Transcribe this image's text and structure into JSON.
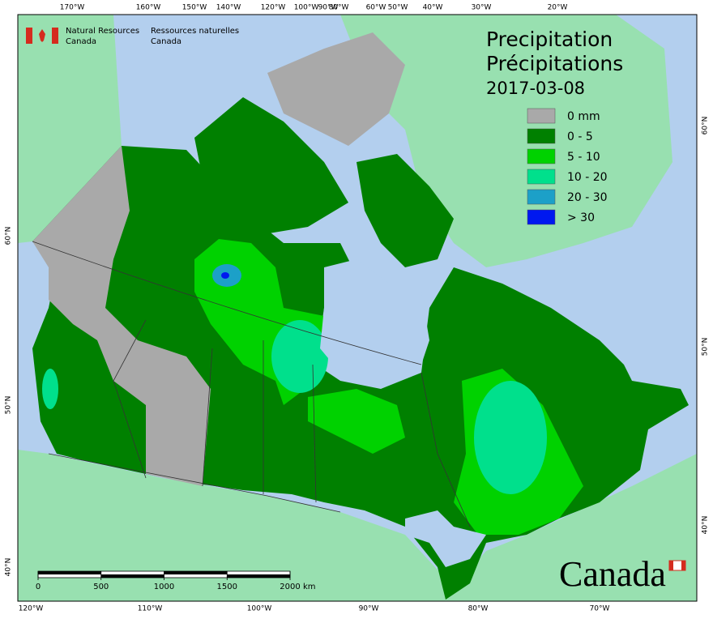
{
  "agency": {
    "en": [
      "Natural Resources",
      "Canada"
    ],
    "fr": [
      "Ressources naturelles",
      "Canada"
    ]
  },
  "title": {
    "en": "Precipitation",
    "fr": "Précipitations",
    "date": "2017-03-08"
  },
  "legend": [
    {
      "label": "0 mm",
      "color": "#a9a9a9"
    },
    {
      "label": "0 - 5",
      "color": "#008000"
    },
    {
      "label": "5 - 10",
      "color": "#00d200"
    },
    {
      "label": "10 - 20",
      "color": "#00e08c"
    },
    {
      "label": "20 - 30",
      "color": "#1ca0c8"
    },
    {
      "label": "> 30",
      "color": "#0018f0"
    }
  ],
  "graticule": {
    "top": [
      "170°W",
      "160°W",
      "150°W",
      "140°W",
      "120°W",
      "100°W",
      "90°W",
      "80°W",
      "60°W",
      "50°W",
      "40°W",
      "30°W",
      "20°W"
    ],
    "bottom": [
      "120°W",
      "110°W",
      "100°W",
      "90°W",
      "80°W",
      "70°W"
    ],
    "left": [
      "60°N",
      "50°N",
      "40°N"
    ],
    "right": [
      "60°N",
      "50°N",
      "40°N"
    ]
  },
  "scale_bar": {
    "ticks": [
      0,
      500,
      1000,
      1500,
      2000
    ],
    "unit": "km"
  },
  "wordmark": "Canada"
}
